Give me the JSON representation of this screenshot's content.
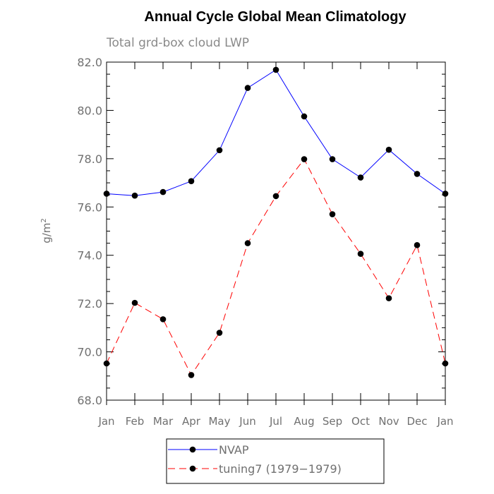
{
  "chart_data": {
    "type": "line",
    "title": "Annual Cycle Global Mean Climatology",
    "subtitle": "Total grd-box cloud LWP",
    "ylabel": "g/m",
    "ylabel_sup": "2",
    "xlabel": "",
    "categories": [
      "Jan",
      "Feb",
      "Mar",
      "Apr",
      "May",
      "Jun",
      "Jul",
      "Aug",
      "Sep",
      "Oct",
      "Nov",
      "Dec",
      "Jan"
    ],
    "ylim": [
      68.0,
      82.0
    ],
    "yticks": [
      "68.0",
      "70.0",
      "72.0",
      "74.0",
      "76.0",
      "78.0",
      "80.0",
      "82.0"
    ],
    "grid": false,
    "legend_position": "bottom-center",
    "series": [
      {
        "name": "NVAP",
        "color": "#0000ff",
        "line_style": "solid",
        "marker": "filled-circle",
        "values": [
          76.55,
          76.47,
          76.62,
          77.07,
          78.35,
          80.93,
          81.68,
          79.75,
          77.98,
          77.22,
          78.37,
          77.37,
          76.55
        ]
      },
      {
        "name": "tuning7 (1979−1979)",
        "color": "#ff0000",
        "line_style": "dashed",
        "marker": "filled-circle",
        "values": [
          69.52,
          72.03,
          71.35,
          69.04,
          70.79,
          74.5,
          76.45,
          77.98,
          75.7,
          74.06,
          72.22,
          74.42,
          69.52
        ]
      }
    ]
  }
}
